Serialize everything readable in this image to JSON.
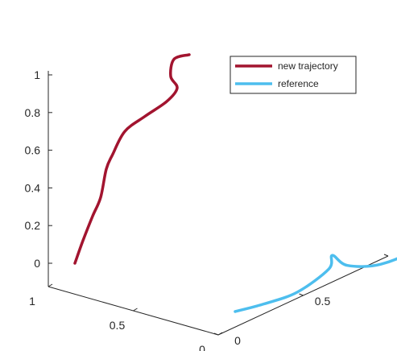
{
  "chart_data": {
    "type": "line",
    "subtype": "3d-line",
    "title": "",
    "xlabel": "",
    "ylabel": "",
    "zlabel": "",
    "x_axis": {
      "ticks": [
        0,
        0.5,
        1
      ],
      "tick_labels": [
        "0",
        "0.5",
        "1"
      ],
      "lim": [
        0,
        1
      ]
    },
    "y_axis": {
      "ticks": [
        0,
        0.5,
        1
      ],
      "tick_labels": [
        "0",
        "0.5",
        "1"
      ],
      "lim": [
        0,
        1
      ]
    },
    "z_axis": {
      "ticks": [
        0,
        0.2,
        0.4,
        0.6,
        0.8,
        1
      ],
      "tick_labels": [
        "0",
        "0.2",
        "0.4",
        "0.6",
        "0.8",
        "1"
      ],
      "lim": [
        -0.05,
        1.05
      ]
    },
    "grid": false,
    "legend": {
      "placement": "top-right",
      "entries": [
        "new trajectory",
        "reference"
      ]
    },
    "series": [
      {
        "name": "new trajectory",
        "color": "#a2142f",
        "line_width": 3.5,
        "points": [
          [
            0.0,
            1.0,
            0.0
          ],
          [
            0.0,
            1.0,
            0.12
          ],
          [
            0.0,
            1.0,
            0.25
          ],
          [
            0.0,
            1.0,
            0.35
          ],
          [
            0.0,
            1.0,
            0.5
          ],
          [
            0.0,
            1.0,
            0.6
          ],
          [
            0.0,
            1.0,
            0.7
          ],
          [
            0.0,
            1.0,
            0.78
          ],
          [
            0.0,
            1.0,
            0.85
          ],
          [
            0.0,
            1.0,
            0.93
          ],
          [
            0.0,
            1.0,
            1.0
          ],
          [
            0.0,
            1.0,
            1.1
          ],
          [
            0.0,
            1.0,
            1.15
          ]
        ]
      },
      {
        "name": "reference",
        "color": "#4dbeee",
        "line_width": 3.5,
        "points": [
          [
            0.0,
            0.0,
            0.0
          ],
          [
            0.08,
            0.0,
            0.02
          ],
          [
            0.18,
            0.0,
            0.04
          ],
          [
            0.3,
            0.0,
            0.1
          ],
          [
            0.33,
            0.0,
            0.16
          ],
          [
            0.4,
            0.0,
            0.09
          ],
          [
            0.5,
            0.0,
            0.05
          ],
          [
            0.62,
            0.0,
            0.09
          ],
          [
            0.72,
            0.0,
            0.2
          ],
          [
            0.72,
            0.0,
            0.3
          ]
        ]
      }
    ]
  }
}
